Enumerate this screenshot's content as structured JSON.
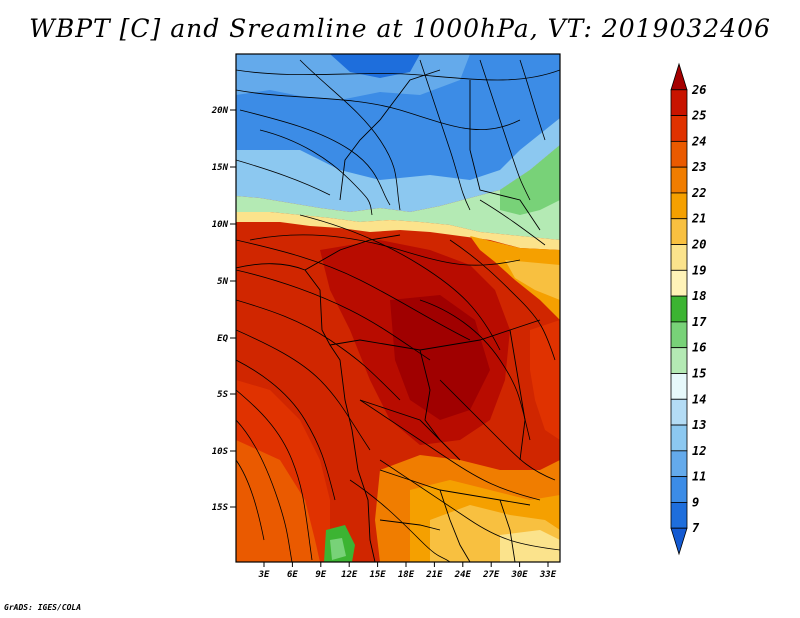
{
  "title": "WBPT [C] and Sreamline at 1000hPa, VT: 2019032406",
  "footer": "GrADS: IGES/COLA",
  "map": {
    "lat_ticks": [
      "20N",
      "15N",
      "10N",
      "5N",
      "EQ",
      "5S",
      "10S",
      "15S"
    ],
    "lon_ticks": [
      "3E",
      "6E",
      "9E",
      "12E",
      "15E",
      "18E",
      "21E",
      "24E",
      "27E",
      "30E",
      "33E"
    ]
  },
  "colorbar": {
    "labels": [
      "26",
      "25",
      "24",
      "23",
      "22",
      "21",
      "20",
      "19",
      "18",
      "17",
      "16",
      "15",
      "14",
      "13",
      "12",
      "11",
      "9",
      "7"
    ],
    "colors": [
      "#a50000",
      "#c81400",
      "#e03200",
      "#ea5a00",
      "#f07d00",
      "#f5a000",
      "#f8c040",
      "#fbe38c",
      "#fff3b8",
      "#3cb432",
      "#78d278",
      "#b4eab4",
      "#e6f8fa",
      "#b4dcf5",
      "#8cc8f0",
      "#64aaeb",
      "#3c8ce6",
      "#1e6edc",
      "#145ad2"
    ]
  }
}
